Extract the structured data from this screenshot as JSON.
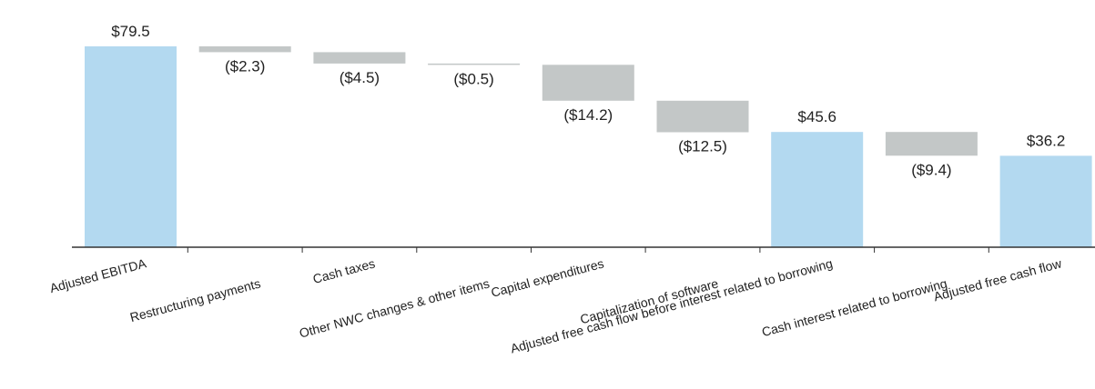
{
  "chart_data": {
    "type": "bar",
    "subtype": "waterfall",
    "categories": [
      "Adjusted EBITDA",
      "Restructuring payments",
      "Cash taxes",
      "Other NWC changes & other items",
      "Capital expenditures",
      "Capitalization of software",
      "Adjusted free cash flow before interest related to borrowing",
      "Cash interest related to borrowing",
      "Adjusted free cash flow"
    ],
    "values": [
      79.5,
      -2.3,
      -4.5,
      -0.5,
      -14.2,
      -12.5,
      45.6,
      -9.4,
      36.2
    ],
    "bar_kinds": [
      "total",
      "delta",
      "delta",
      "delta",
      "delta",
      "delta",
      "total",
      "delta",
      "total"
    ],
    "data_labels": [
      "$79.5",
      "($2.3)",
      "($4.5)",
      "($0.5)",
      "($14.2)",
      "($12.5)",
      "$45.6",
      "($9.4)",
      "$36.2"
    ],
    "title": "",
    "xlabel": "",
    "ylabel": "",
    "ylim": [
      0,
      79.5
    ],
    "grid": false,
    "legend": "none",
    "colors": {
      "total": "#b3d9f0",
      "delta": "#c3c7c7",
      "axis": "#333333",
      "text": "#222222"
    }
  }
}
